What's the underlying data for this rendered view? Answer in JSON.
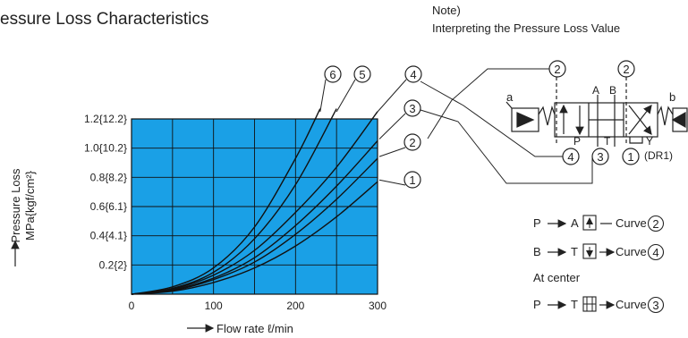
{
  "title": "essure Loss Characteristics",
  "note": {
    "line1": "Note)",
    "line2": "Interpreting the Pressure Loss Value"
  },
  "chart_data": {
    "type": "line",
    "xlabel": "Flow rate ℓ/min",
    "ylabel_line1": "Pressure Loss",
    "ylabel_line2": "MPa{kgf/cm²}",
    "xlim": [
      0,
      300
    ],
    "ylim": [
      0,
      1.2
    ],
    "x_ticks": [
      {
        "value": 0,
        "label": "0"
      },
      {
        "value": 100,
        "label": "100"
      },
      {
        "value": 200,
        "label": "200"
      },
      {
        "value": 300,
        "label": "300"
      }
    ],
    "y_ticks": [
      {
        "value": 0.2,
        "label": "0.2{2}"
      },
      {
        "value": 0.4,
        "label": "0.4{4.1}"
      },
      {
        "value": 0.6,
        "label": "0.6{6.1}"
      },
      {
        "value": 0.8,
        "label": "0.8{8.2}"
      },
      {
        "value": 1.0,
        "label": "1.0{10.2}"
      },
      {
        "value": 1.2,
        "label": "1.2{12.2}"
      }
    ],
    "grid": true,
    "plot_background": "#1aa0e6",
    "line_color": "#111111",
    "series": [
      {
        "name": "6",
        "x": [
          0,
          50,
          100,
          150,
          200,
          230
        ],
        "y": [
          0,
          0.05,
          0.18,
          0.46,
          0.93,
          1.27
        ]
      },
      {
        "name": "5",
        "x": [
          0,
          50,
          100,
          150,
          200,
          250
        ],
        "y": [
          0,
          0.04,
          0.15,
          0.38,
          0.75,
          1.27
        ]
      },
      {
        "name": "4",
        "x": [
          0,
          50,
          100,
          150,
          200,
          250,
          300
        ],
        "y": [
          0,
          0.035,
          0.13,
          0.3,
          0.56,
          0.87,
          1.25
        ]
      },
      {
        "name": "3",
        "x": [
          0,
          50,
          100,
          150,
          200,
          250,
          300
        ],
        "y": [
          0,
          0.03,
          0.11,
          0.25,
          0.47,
          0.74,
          1.05
        ]
      },
      {
        "name": "2",
        "x": [
          0,
          50,
          100,
          150,
          200,
          250,
          300
        ],
        "y": [
          0,
          0.025,
          0.1,
          0.22,
          0.41,
          0.65,
          0.93
        ]
      },
      {
        "name": "1",
        "x": [
          0,
          50,
          100,
          150,
          200,
          250,
          300
        ],
        "y": [
          0,
          0.02,
          0.08,
          0.18,
          0.33,
          0.53,
          0.77
        ]
      }
    ]
  },
  "symbol": {
    "port_a": "a",
    "port_b": "b",
    "label_A": "A",
    "label_B": "B",
    "label_P": "P",
    "label_T": "T",
    "label_Y": "Y",
    "label_dr1": "(DR1)",
    "callouts": [
      "2",
      "2",
      "4",
      "3",
      "1"
    ]
  },
  "legend": {
    "row1": {
      "from": "P",
      "to": "A",
      "curve_label": "Curve",
      "curve": "2"
    },
    "row2": {
      "from": "B",
      "to": "T",
      "curve_label": "Curve",
      "curve": "4"
    },
    "center_label": "At center",
    "row3": {
      "from": "P",
      "to": "T",
      "curve_label": "Curve",
      "curve": "3"
    }
  }
}
